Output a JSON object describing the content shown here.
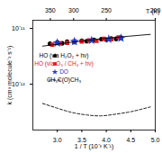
{
  "chart_data": {
    "type": "scatter",
    "x_label": "1 / T (10⁻³ K⁻¹)",
    "y_label": "k (cm³ molecule⁻¹ s⁻¹)",
    "x2_label": "T (K)",
    "x2ticks": [
      350,
      300,
      250,
      200
    ],
    "xlim": [
      2.5,
      5.0
    ],
    "xticks": [
      {
        "value": 3,
        "label": "3.0"
      },
      3.5,
      {
        "value": 4,
        "label": "4.0"
      },
      4.5,
      {
        "value": 5,
        "label": "5.0"
      }
    ],
    "log": "y",
    "ylim": [
      1.5e-13,
      1.4e-11
    ],
    "yticks": [
      {
        "value": 1e-11,
        "label": "10⁻¹¹"
      },
      {
        "value": 1e-12,
        "label": "10⁻¹²"
      }
    ],
    "legend": "top",
    "series": [
      {
        "name": "HO (via H₂O₂ + hν)",
        "type": "scatter",
        "marker": "circle",
        "color": "#000000",
        "x": [
          2.85,
          3.0,
          3.1,
          3.2,
          3.35,
          3.5,
          3.6,
          3.75,
          3.9,
          4.0,
          4.1,
          4.2,
          4.3
        ],
        "values": [
          5.3e-12,
          5.6e-12,
          5.4e-12,
          5.8e-12,
          5.7e-12,
          6e-12,
          5.9e-12,
          6.2e-12,
          6.4e-12,
          6.3e-12,
          6.6e-12,
          6.5e-12,
          6.8e-12
        ]
      },
      {
        "name": "HO (via O₃ / CH₄ + hν)",
        "type": "scatter",
        "marker": "square",
        "color": "#e8141c",
        "x": [
          2.9,
          3.05,
          3.2,
          3.35,
          3.5,
          3.65,
          3.8,
          3.95,
          4.1,
          4.25
        ],
        "values": [
          5.1e-12,
          5.4e-12,
          5.5e-12,
          5.9e-12,
          5.8e-12,
          6.1e-12,
          6e-12,
          6.5e-12,
          6.4e-12,
          6.9e-12
        ]
      },
      {
        "name": "DO",
        "type": "scatter",
        "marker": "star",
        "color": "#1f3cc8",
        "x": [
          3.0,
          3.35,
          3.7,
          4.05,
          4.3
        ],
        "values": [
          5.5e-12,
          5.8e-12,
          6.1e-12,
          6.4e-12,
          6.7e-12
        ]
      },
      {
        "name": null,
        "type": "line",
        "line_style": "solid",
        "color": "#000000",
        "x": [
          2.7,
          3.2,
          3.7,
          4.2,
          4.9
        ],
        "values": [
          4.8e-12,
          5.5e-12,
          6.2e-12,
          6.9e-12,
          7.8e-12
        ]
      },
      {
        "name": "CH₃C(O)CH₃",
        "type": "line",
        "line_style": "dashed",
        "color": "#000000",
        "x": [
          2.7,
          3.0,
          3.3,
          3.6,
          3.9,
          4.2,
          4.5,
          4.9
        ],
        "values": [
          4.5e-13,
          3.7e-13,
          3.1e-13,
          2.8e-13,
          2.7e-13,
          2.9e-13,
          3.2e-13,
          3.9e-13
        ]
      }
    ]
  }
}
